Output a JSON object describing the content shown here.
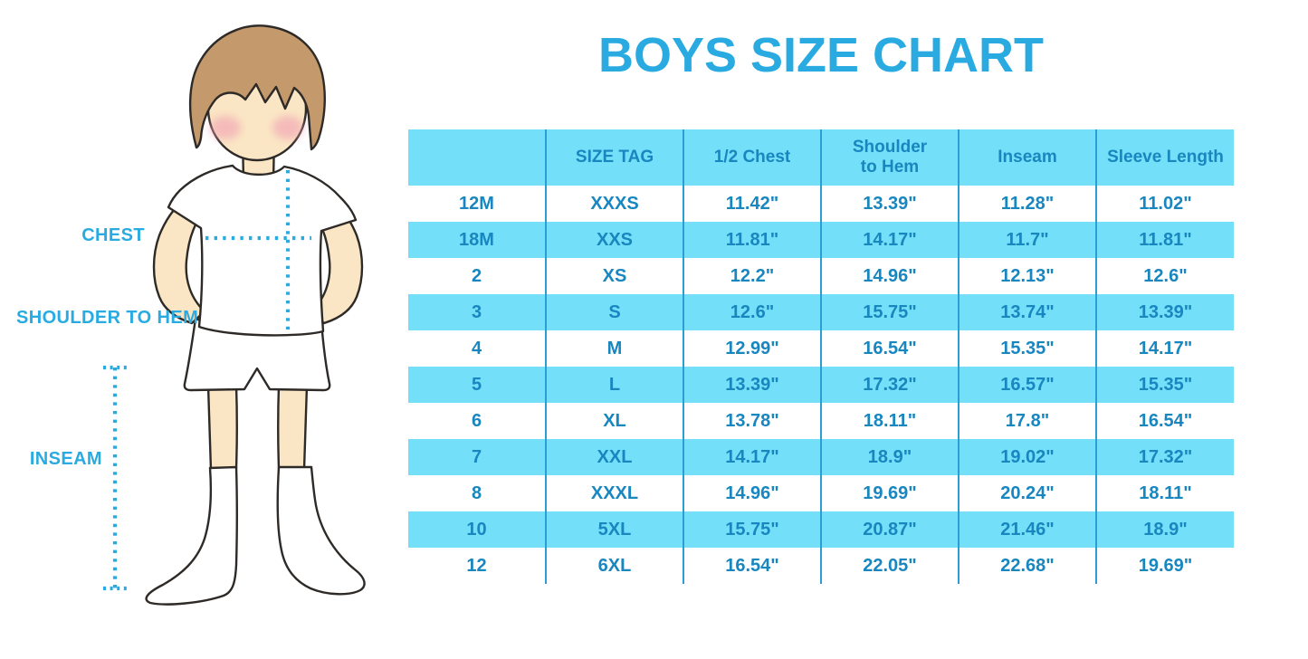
{
  "title": "BOYS SIZE CHART",
  "theme": {
    "accent": "#29ABE2",
    "table_text": "#1886BF",
    "table_fill": "#74DFF9",
    "table_line": "#2B9ED3",
    "skin": "#FAE6C4",
    "hair": "#C49A6C",
    "cheek": "#F2A4B5",
    "outline": "#2E2A27"
  },
  "figure": {
    "labels": {
      "chest": "CHEST",
      "shoulder_to_hem": "SHOULDER TO HEM",
      "inseam": "INSEAM"
    }
  },
  "chart_data": {
    "type": "table",
    "title": "BOYS SIZE CHART",
    "columns": [
      "",
      "SIZE TAG",
      "1/2 Chest",
      "Shoulder to Hem",
      "Inseam",
      "Sleeve Length"
    ],
    "rows": [
      [
        "12M",
        "XXXS",
        "11.42\"",
        "13.39\"",
        "11.28\"",
        "11.02\""
      ],
      [
        "18M",
        "XXS",
        "11.81\"",
        "14.17\"",
        "11.7\"",
        "11.81\""
      ],
      [
        "2",
        "XS",
        "12.2\"",
        "14.96\"",
        "12.13\"",
        "12.6\""
      ],
      [
        "3",
        "S",
        "12.6\"",
        "15.75\"",
        "13.74\"",
        "13.39\""
      ],
      [
        "4",
        "M",
        "12.99\"",
        "16.54\"",
        "15.35\"",
        "14.17\""
      ],
      [
        "5",
        "L",
        "13.39\"",
        "17.32\"",
        "16.57\"",
        "15.35\""
      ],
      [
        "6",
        "XL",
        "13.78\"",
        "18.11\"",
        "17.8\"",
        "16.54\""
      ],
      [
        "7",
        "XXL",
        "14.17\"",
        "18.9\"",
        "19.02\"",
        "17.32\""
      ],
      [
        "8",
        "XXXL",
        "14.96\"",
        "19.69\"",
        "20.24\"",
        "18.11\""
      ],
      [
        "10",
        "5XL",
        "15.75\"",
        "20.87\"",
        "21.46\"",
        "18.9\""
      ],
      [
        "12",
        "6XL",
        "16.54\"",
        "22.05\"",
        "22.68\"",
        "19.69\""
      ]
    ]
  }
}
